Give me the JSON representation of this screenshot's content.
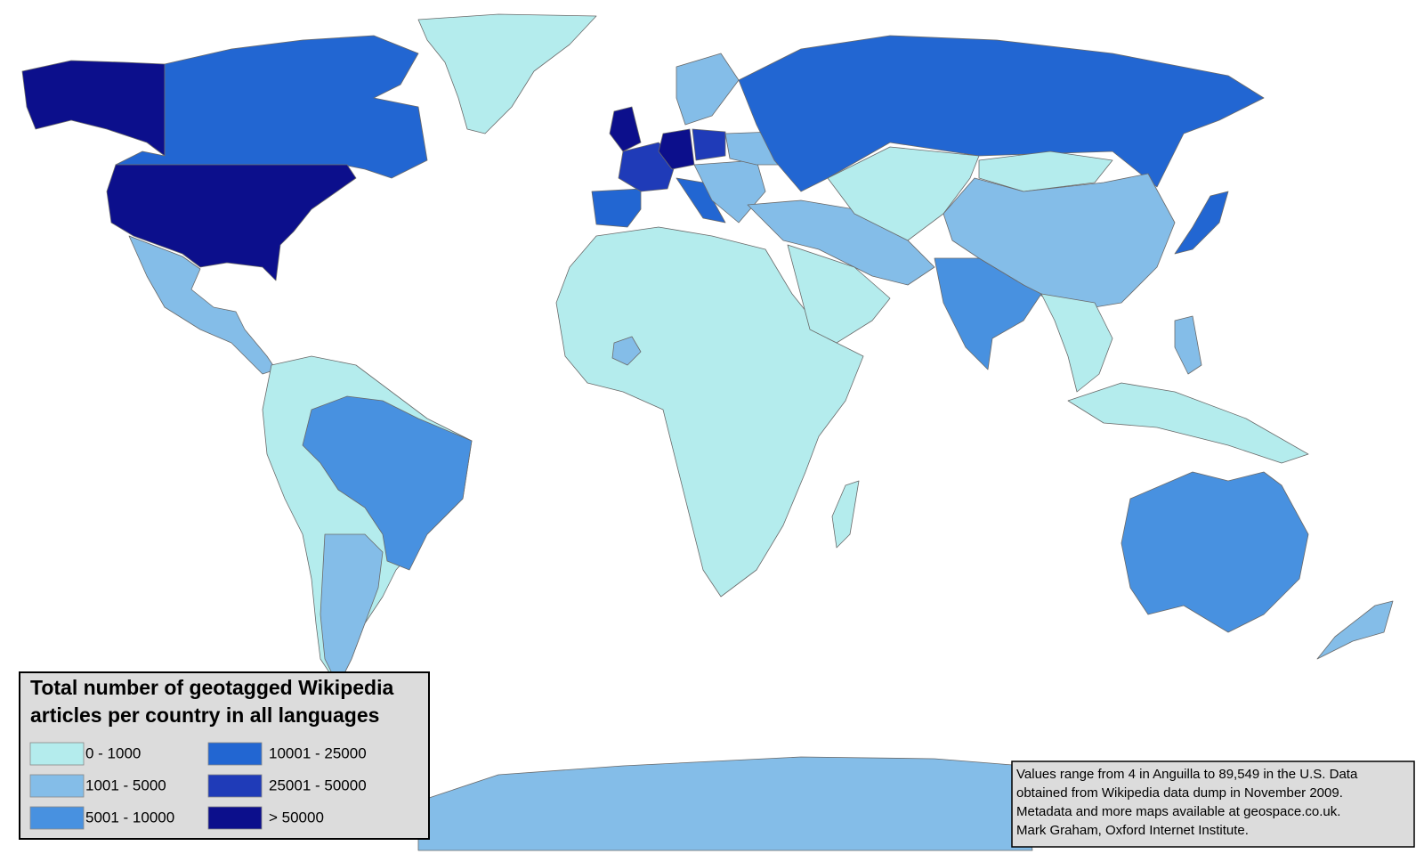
{
  "legend": {
    "title": [
      "Total number of geotagged Wikipedia",
      "articles per country in all languages"
    ],
    "items": [
      {
        "label": "0 - 1000",
        "color": "#b4eced"
      },
      {
        "label": "1001 - 5000",
        "color": "#84bde8"
      },
      {
        "label": "5001 - 10000",
        "color": "#4891e0"
      },
      {
        "label": "10001 - 25000",
        "color": "#2266d2"
      },
      {
        "label": "25001 - 50000",
        "color": "#1f3bb8"
      },
      {
        "label": "> 50000",
        "color": "#0c0f8c"
      }
    ]
  },
  "note": {
    "lines": [
      "Values range from 4 in Anguilla to 89,549 in the U.S. Data",
      "obtained from Wikipedia data dump in November 2009.",
      "Metadata and more maps available at geospace.co.uk.",
      "Mark Graham, Oxford Internet Institute."
    ]
  }
}
